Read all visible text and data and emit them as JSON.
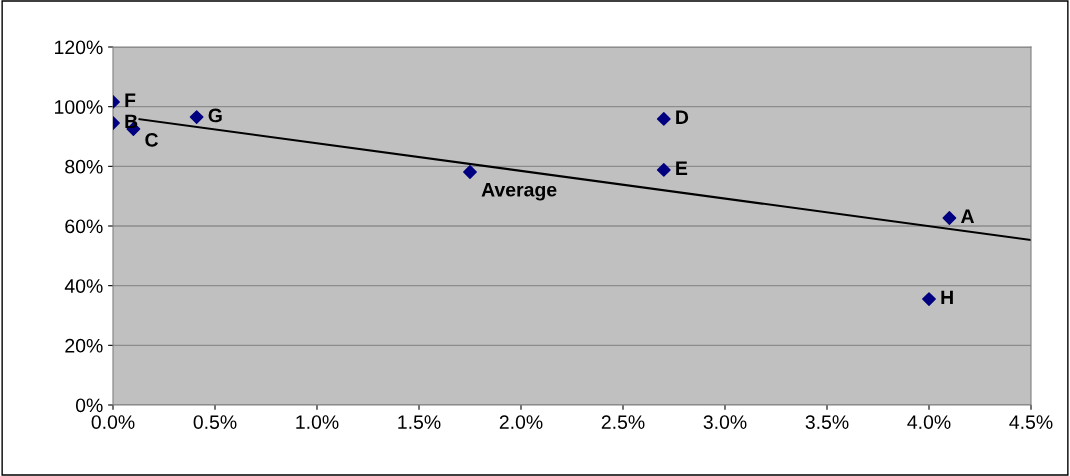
{
  "chart_data": {
    "type": "scatter",
    "series": [
      {
        "type": "scatter",
        "color": "#000080",
        "marker": "diamond",
        "x": [
          4.1,
          0.0,
          0.1,
          2.7,
          2.7,
          0.0,
          0.41,
          4.0,
          1.75
        ],
        "values": [
          62.7,
          94.5,
          92.5,
          95.9,
          78.8,
          101.6,
          96.5,
          35.5,
          78.1
        ]
      },
      {
        "type": "line",
        "color": "#000000",
        "marker": "none",
        "line_style": "solid",
        "x": [
          0.13,
          4.5
        ],
        "values": [
          95.8,
          55.3
        ]
      }
    ],
    "annotations": [
      {
        "text": "A",
        "x": 4.1,
        "y": 62.7
      },
      {
        "text": "B",
        "x": 0.0,
        "y": 94.5
      },
      {
        "text": "C",
        "x": 0.1,
        "y": 92.5
      },
      {
        "text": "D",
        "x": 2.7,
        "y": 95.9
      },
      {
        "text": "E",
        "x": 2.7,
        "y": 78.8
      },
      {
        "text": "F",
        "x": 0.0,
        "y": 101.6
      },
      {
        "text": "G",
        "x": 0.41,
        "y": 96.5
      },
      {
        "text": "H",
        "x": 4.0,
        "y": 35.5
      },
      {
        "text": "Average",
        "x": 1.75,
        "y": 78.1
      }
    ],
    "xlim": [
      0,
      4.5
    ],
    "xticks": [
      {
        "value": 0,
        "label": "0.0%"
      },
      {
        "value": 0.5,
        "label": "0.5%"
      },
      {
        "value": 1.0,
        "label": "1.0%"
      },
      {
        "value": 1.5,
        "label": "1.5%"
      },
      {
        "value": 2.0,
        "label": "2.0%"
      },
      {
        "value": 2.5,
        "label": "2.5%"
      },
      {
        "value": 3.0,
        "label": "3.0%"
      },
      {
        "value": 3.5,
        "label": "3.5%"
      },
      {
        "value": 4.0,
        "label": "4.0%"
      },
      {
        "value": 4.5,
        "label": "4.5%"
      }
    ],
    "ylim": [
      0,
      120
    ],
    "yticks": [
      {
        "value": 0,
        "label": "0%"
      },
      {
        "value": 20,
        "label": "20%"
      },
      {
        "value": 40,
        "label": "40%"
      },
      {
        "value": 60,
        "label": "60%"
      },
      {
        "value": 80,
        "label": "80%"
      },
      {
        "value": 100,
        "label": "100%"
      },
      {
        "value": 120,
        "label": "120%"
      }
    ],
    "grid": "y",
    "legend": false
  }
}
